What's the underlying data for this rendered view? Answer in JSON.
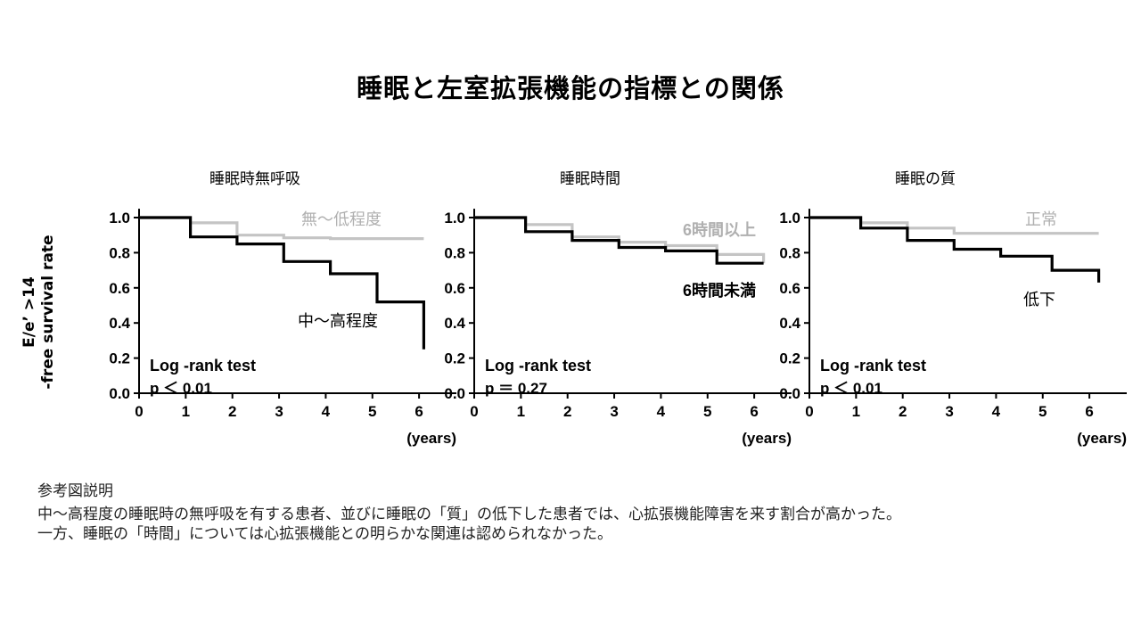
{
  "title": "睡眠と左室拡張機能の指標との関係",
  "y_axis_label": {
    "line1": "E/e’ >14",
    "line2": "-free survival rate"
  },
  "colors": {
    "axis": "#000000",
    "black_line": "#000000",
    "gray_line": "#c4c4c4"
  },
  "chart_data": [
    {
      "type": "line",
      "step": true,
      "title": "睡眠時無呼吸",
      "x_unit_label": "(years)",
      "xticks": [
        "0",
        "1",
        "2",
        "3",
        "4",
        "5",
        "6"
      ],
      "yticks": [
        "0.0",
        "0.2",
        "0.4",
        "0.6",
        "0.8",
        "1.0"
      ],
      "xlim": [
        0,
        6.8
      ],
      "ylim": [
        0,
        1.05
      ],
      "test_label": "Log -rank test",
      "p_text": "p ＜ 0.01",
      "series": [
        {
          "name": "無～低程度",
          "color": "#c4c4c4",
          "points": [
            [
              0,
              1.0
            ],
            [
              1.1,
              1.0
            ],
            [
              1.1,
              0.97
            ],
            [
              2.1,
              0.97
            ],
            [
              2.1,
              0.9
            ],
            [
              3.1,
              0.9
            ],
            [
              3.1,
              0.885
            ],
            [
              4.1,
              0.885
            ],
            [
              4.1,
              0.88
            ],
            [
              6.1,
              0.88
            ]
          ]
        },
        {
          "name": "中～高程度",
          "color": "#000000",
          "points": [
            [
              0,
              1.0
            ],
            [
              1.1,
              1.0
            ],
            [
              1.1,
              0.89
            ],
            [
              2.1,
              0.89
            ],
            [
              2.1,
              0.85
            ],
            [
              3.1,
              0.85
            ],
            [
              3.1,
              0.75
            ],
            [
              4.1,
              0.75
            ],
            [
              4.1,
              0.68
            ],
            [
              5.1,
              0.68
            ],
            [
              5.1,
              0.52
            ],
            [
              6.1,
              0.52
            ],
            [
              6.1,
              0.25
            ]
          ]
        }
      ]
    },
    {
      "type": "line",
      "step": true,
      "title": "睡眠時間",
      "x_unit_label": "(years)",
      "xticks": [
        "0",
        "1",
        "2",
        "3",
        "4",
        "5",
        "6"
      ],
      "yticks": [
        "0.0",
        "0.2",
        "0.4",
        "0.6",
        "0.8",
        "1.0"
      ],
      "xlim": [
        0,
        6.8
      ],
      "ylim": [
        0,
        1.05
      ],
      "test_label": "Log -rank test",
      "p_text": "p ＝ 0.27",
      "series": [
        {
          "name": "6時間以上",
          "color": "#c4c4c4",
          "points": [
            [
              0,
              1.0
            ],
            [
              1.1,
              1.0
            ],
            [
              1.1,
              0.96
            ],
            [
              2.1,
              0.96
            ],
            [
              2.1,
              0.89
            ],
            [
              3.1,
              0.89
            ],
            [
              3.1,
              0.86
            ],
            [
              4.1,
              0.86
            ],
            [
              4.1,
              0.84
            ],
            [
              5.2,
              0.84
            ],
            [
              5.2,
              0.79
            ],
            [
              6.2,
              0.79
            ],
            [
              6.2,
              0.74
            ]
          ]
        },
        {
          "name": "6時間未満",
          "color": "#000000",
          "points": [
            [
              0,
              1.0
            ],
            [
              1.1,
              1.0
            ],
            [
              1.1,
              0.92
            ],
            [
              2.1,
              0.92
            ],
            [
              2.1,
              0.87
            ],
            [
              3.1,
              0.87
            ],
            [
              3.1,
              0.83
            ],
            [
              4.1,
              0.83
            ],
            [
              4.1,
              0.81
            ],
            [
              5.2,
              0.81
            ],
            [
              5.2,
              0.74
            ],
            [
              6.2,
              0.74
            ]
          ]
        }
      ]
    },
    {
      "type": "line",
      "step": true,
      "title": "睡眠の質",
      "x_unit_label": "(years)",
      "xticks": [
        "0",
        "1",
        "2",
        "3",
        "4",
        "5",
        "6"
      ],
      "yticks": [
        "0.0",
        "0.2",
        "0.4",
        "0.6",
        "0.8",
        "1.0"
      ],
      "xlim": [
        0,
        6.8
      ],
      "ylim": [
        0,
        1.05
      ],
      "test_label": "Log -rank test",
      "p_text": "p ＜ 0.01",
      "series": [
        {
          "name": "正常",
          "color": "#c4c4c4",
          "points": [
            [
              0,
              1.0
            ],
            [
              1.1,
              1.0
            ],
            [
              1.1,
              0.97
            ],
            [
              2.1,
              0.97
            ],
            [
              2.1,
              0.94
            ],
            [
              3.1,
              0.94
            ],
            [
              3.1,
              0.91
            ],
            [
              6.2,
              0.91
            ]
          ]
        },
        {
          "name": "低下",
          "color": "#000000",
          "points": [
            [
              0,
              1.0
            ],
            [
              1.1,
              1.0
            ],
            [
              1.1,
              0.94
            ],
            [
              2.1,
              0.94
            ],
            [
              2.1,
              0.87
            ],
            [
              3.1,
              0.87
            ],
            [
              3.1,
              0.82
            ],
            [
              4.1,
              0.82
            ],
            [
              4.1,
              0.78
            ],
            [
              5.2,
              0.78
            ],
            [
              5.2,
              0.7
            ],
            [
              6.2,
              0.7
            ],
            [
              6.2,
              0.63
            ]
          ]
        }
      ]
    }
  ],
  "note": {
    "heading": "参考図説明",
    "line1": "中～高程度の睡眠時の無呼吸を有する患者、並びに睡眠の「質」の低下した患者では、心拡張機能障害を来す割合が高かった。",
    "line2": "一方、睡眠の「時間」については心拡張機能との明らかな関連は認められなかった。"
  }
}
